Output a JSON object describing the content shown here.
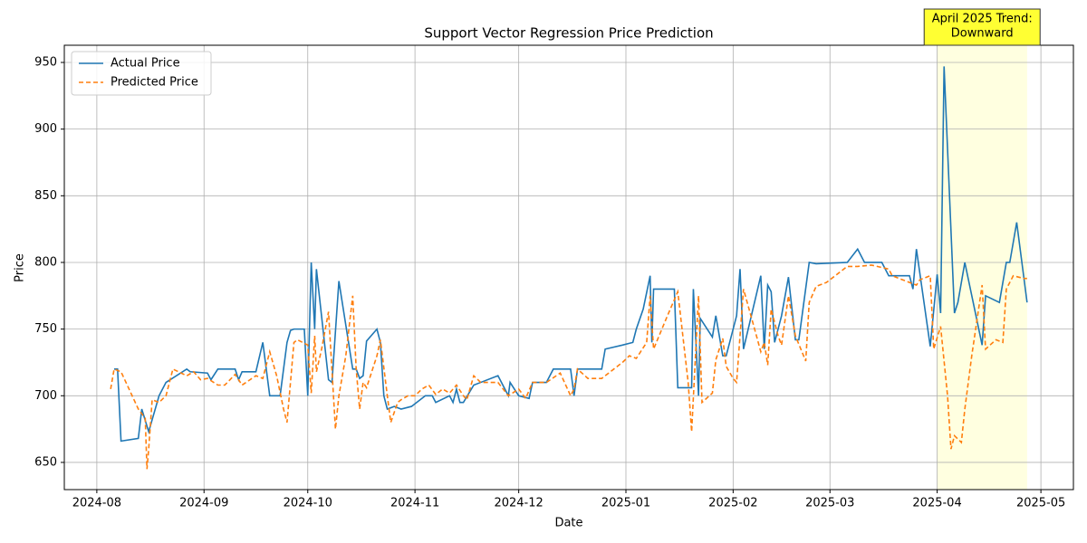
{
  "chart_data": {
    "type": "line",
    "title": "Support Vector Regression Price Prediction",
    "x_label": "Date",
    "y_label": "Price",
    "xlim": [
      19926.6,
      20218.4
    ],
    "ylim": [
      629.6,
      962.9
    ],
    "xticks": [
      {
        "value": 19936,
        "label": "2024-08"
      },
      {
        "value": 19967,
        "label": "2024-09"
      },
      {
        "value": 19997,
        "label": "2024-10"
      },
      {
        "value": 20028,
        "label": "2024-11"
      },
      {
        "value": 20058,
        "label": "2024-12"
      },
      {
        "value": 20089,
        "label": "2025-01"
      },
      {
        "value": 20120,
        "label": "2025-02"
      },
      {
        "value": 20148,
        "label": "2025-03"
      },
      {
        "value": 20179,
        "label": "2025-04"
      },
      {
        "value": 20209,
        "label": "2025-05"
      }
    ],
    "yticks": [
      650,
      700,
      750,
      800,
      850,
      900,
      950
    ],
    "grid": true,
    "legend": "upper left",
    "highlight": {
      "x": [
        20179,
        20205
      ],
      "color": "#ffffe0"
    },
    "annotation": {
      "lines": [
        "April 2025 Trend:",
        "Downward"
      ],
      "color": "#ffff33"
    },
    "series": [
      {
        "name": "Actual Price",
        "color": "#1f77b4",
        "dash": false,
        "x": [
          19941,
          19942,
          19943,
          19948,
          19949,
          19951,
          19954,
          19956,
          19962,
          19963,
          19968,
          19969,
          19971,
          19976,
          19977,
          19978,
          19982,
          19984,
          19986,
          19989,
          19991,
          19992,
          19993,
          19996,
          19997,
          19998,
          19999,
          19999.5,
          20003,
          20004,
          20006,
          20010,
          20011,
          20012,
          20013,
          20014,
          20017,
          20018,
          20019,
          20020,
          20022,
          20024,
          20027,
          20031,
          20033,
          20034,
          20038,
          20039,
          20040,
          20041,
          20042,
          20045,
          20047,
          20052,
          20055,
          20055.5,
          20058,
          20061,
          20062,
          20066,
          20068,
          20073,
          20074,
          20075,
          20082,
          20083,
          20088,
          20091,
          20092,
          20094,
          20096,
          20096.5,
          20097,
          20103,
          20104,
          20108,
          20108.5,
          20110,
          20110.5,
          20114,
          20115,
          20117,
          20118,
          20121,
          20122,
          20123,
          20128,
          20129,
          20130,
          20131,
          20132,
          20134,
          20136,
          20138,
          20139,
          20142,
          20144,
          20153,
          20156,
          20158,
          20163,
          20165,
          20171,
          20172,
          20173,
          20177,
          20179,
          20180,
          20181,
          20184,
          20185,
          20187,
          20192,
          20193,
          20197,
          20199,
          20200,
          20202,
          20205
        ],
        "values": [
          720,
          720,
          666,
          668,
          690,
          673,
          700,
          710,
          720,
          718,
          717,
          712,
          720,
          720,
          712,
          718,
          718,
          740,
          700,
          700,
          740,
          749,
          750,
          750,
          700,
          800,
          750,
          795,
          712,
          710,
          786,
          720,
          720,
          713,
          715,
          741,
          750,
          740,
          700,
          690,
          692,
          690,
          692,
          700,
          700,
          695,
          700,
          695,
          705,
          695,
          695,
          708,
          710,
          715,
          700,
          710,
          700,
          698,
          710,
          710,
          720,
          720,
          700,
          720,
          720,
          735,
          738,
          740,
          750,
          765,
          790,
          740,
          780,
          780,
          706,
          706,
          780,
          700,
          758,
          744,
          760,
          730,
          730,
          760,
          795,
          735,
          790,
          735,
          783,
          778,
          740,
          760,
          789,
          742,
          742,
          800,
          799,
          800,
          810,
          800,
          800,
          790,
          790,
          780,
          810,
          737,
          791,
          762,
          947,
          762,
          770,
          800,
          738,
          775,
          770,
          800,
          800,
          830,
          770
        ]
      },
      {
        "name": "Predicted Price",
        "color": "#ff7f0e",
        "dash": true,
        "x": [
          19940,
          19941,
          19943,
          19948,
          19950,
          19950.5,
          19951,
          19952,
          19954,
          19956,
          19958,
          19962,
          19964,
          19966,
          19968,
          19971,
          19973,
          19976,
          19977,
          19978,
          19982,
          19984,
          19986,
          19988,
          19990,
          19991,
          19992,
          19993,
          19994,
          19997,
          19998,
          19999,
          19999.5,
          20001,
          20003,
          20005,
          20006,
          20008,
          20010,
          20011,
          20012,
          20013,
          20014,
          20017,
          20018,
          20020,
          20021,
          20023,
          20024,
          20026,
          20028,
          20030,
          20032,
          20034,
          20036,
          20038,
          20040,
          20042,
          20043,
          20045,
          20047,
          20052,
          20055,
          20058,
          20060,
          20062,
          20066,
          20070,
          20073,
          20074,
          20075,
          20078,
          20082,
          20088,
          20090,
          20092,
          20095,
          20096,
          20097,
          20101,
          20104,
          20107,
          20108,
          20110,
          20111,
          20114,
          20115,
          20117,
          20118,
          20120,
          20121,
          20123,
          20126,
          20128,
          20129,
          20130,
          20131,
          20133,
          20134,
          20136,
          20138,
          20141,
          20142,
          20144,
          20147,
          20153,
          20156,
          20160,
          20165,
          20166,
          20173,
          20174,
          20177,
          20178,
          20180,
          20182,
          20183,
          20184,
          20186,
          20187,
          20189,
          20192,
          20193,
          20196,
          20198,
          20199,
          20201,
          20204,
          20205
        ],
        "values": [
          705,
          720,
          718,
          690,
          683,
          645,
          660,
          697,
          695,
          700,
          720,
          715,
          718,
          712,
          713,
          708,
          708,
          716,
          712,
          708,
          715,
          713,
          733,
          715,
          690,
          680,
          710,
          740,
          742,
          738,
          702,
          745,
          718,
          735,
          763,
          675,
          700,
          730,
          775,
          720,
          690,
          710,
          706,
          730,
          742,
          700,
          680,
          695,
          697,
          700,
          700,
          705,
          708,
          701,
          705,
          702,
          708,
          700,
          697,
          715,
          710,
          710,
          700,
          705,
          698,
          710,
          710,
          717,
          700,
          705,
          720,
          713,
          713,
          725,
          730,
          728,
          740,
          775,
          735,
          760,
          778,
          710,
          673,
          775,
          695,
          702,
          727,
          743,
          722,
          713,
          710,
          780,
          752,
          733,
          740,
          723,
          765,
          745,
          738,
          775,
          745,
          726,
          770,
          782,
          785,
          797,
          797,
          798,
          795,
          790,
          783,
          787,
          790,
          735,
          752,
          700,
          660,
          670,
          665,
          690,
          730,
          783,
          735,
          742,
          740,
          780,
          790,
          788,
          788
        ]
      }
    ]
  }
}
